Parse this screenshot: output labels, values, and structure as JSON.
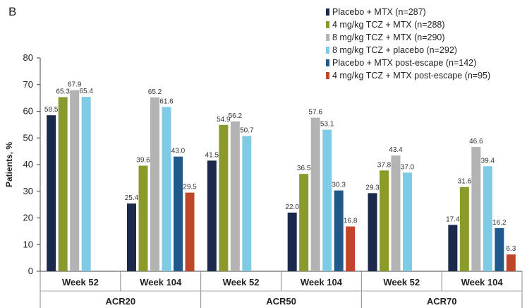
{
  "panel_label": "B",
  "chart_data": {
    "type": "bar",
    "ylabel": "Patients, %",
    "ylim": [
      0,
      80
    ],
    "yticks": [
      0,
      10,
      20,
      30,
      40,
      50,
      60,
      70,
      80
    ],
    "grid": false,
    "legend_position": "top-right",
    "groups": [
      {
        "name": "ACR20",
        "timepoints": [
          {
            "label": "Week 52",
            "values": [
              58.5,
              65.3,
              67.9,
              65.4,
              null,
              null
            ],
            "value_labels": [
              "58.5",
              "65.3",
              "67.9",
              "65.4",
              null,
              null
            ]
          },
          {
            "label": "Week 104",
            "values": [
              25.4,
              39.6,
              65.2,
              61.6,
              43.0,
              29.5
            ],
            "value_labels": [
              "25.4",
              "39.6",
              "65.2",
              "61.6",
              "43.0",
              "29.5"
            ]
          }
        ]
      },
      {
        "name": "ACR50",
        "timepoints": [
          {
            "label": "Week 52",
            "values": [
              41.5,
              54.9,
              56.2,
              50.7,
              null,
              null
            ],
            "value_labels": [
              "41.5",
              "54.9",
              "56.2",
              "50.7",
              null,
              null
            ]
          },
          {
            "label": "Week 104",
            "values": [
              22.0,
              36.5,
              57.6,
              53.1,
              30.3,
              16.8
            ],
            "value_labels": [
              "22.0",
              "36.5",
              "57.6",
              "53.1",
              "30.3",
              "16.8"
            ]
          }
        ]
      },
      {
        "name": "ACR70",
        "timepoints": [
          {
            "label": "Week 52",
            "values": [
              29.3,
              37.8,
              43.4,
              37.0,
              null,
              null
            ],
            "value_labels": [
              "29.3",
              "37.8",
              "43.4",
              "37.0",
              null,
              null
            ]
          },
          {
            "label": "Week 104",
            "values": [
              17.4,
              31.6,
              46.6,
              39.4,
              16.2,
              6.3
            ],
            "value_labels": [
              "17.4",
              "31.6",
              "46.6",
              "39.4",
              "16.2",
              "6.3"
            ]
          }
        ]
      }
    ],
    "series": [
      {
        "name": "Placebo + MTX (n=287)",
        "color": "#1b2a4a"
      },
      {
        "name": "4 mg/kg TCZ + MTX (n=288)",
        "color": "#8c9a2c"
      },
      {
        "name": "8 mg/kg TCZ + MTX (n=290)",
        "color": "#b3b3b3"
      },
      {
        "name": "8 mg/kg TCZ + placebo (n=292)",
        "color": "#7ecbe6"
      },
      {
        "name": "Placebo + MTX post-escape (n=142)",
        "color": "#1f5a8a"
      },
      {
        "name": "4 mg/kg TCZ + MTX post-escape (n=95)",
        "color": "#c0462a"
      }
    ]
  }
}
